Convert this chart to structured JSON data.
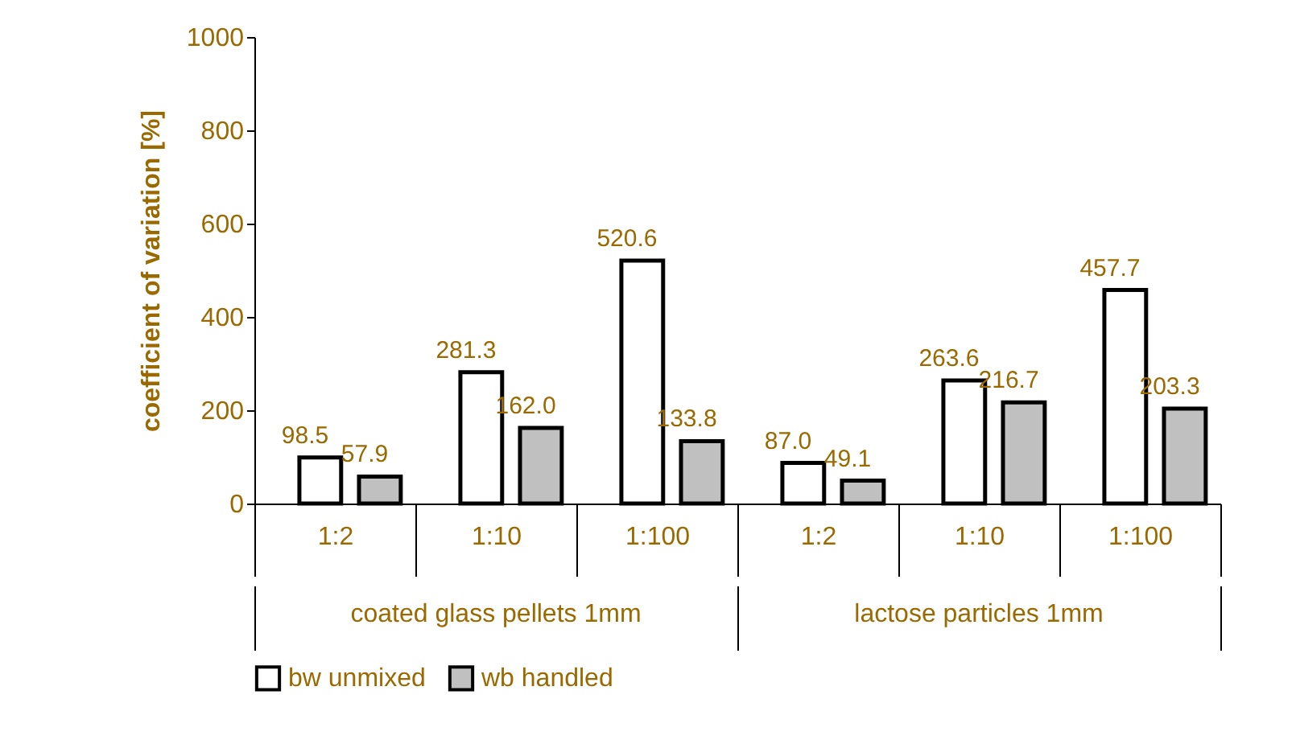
{
  "chart_data": {
    "type": "bar",
    "ylabel": "coefficient of variation [%]",
    "categories": [
      "1:2",
      "1:10",
      "1:100",
      "1:2",
      "1:10",
      "1:100"
    ],
    "annotations": [
      "coated glass pellets 1mm",
      "lactose particles 1mm"
    ],
    "series": [
      {
        "name": "bw unmixed",
        "color": "#ffffff",
        "values": [
          98.5,
          281.3,
          520.6,
          87.0,
          263.6,
          457.7
        ],
        "value_labels": [
          "98.5",
          "281.3",
          "520.6",
          "87.0",
          "263.6",
          "457.7"
        ]
      },
      {
        "name": "wb handled",
        "color": "#c0c0c0",
        "values": [
          57.9,
          162.0,
          133.8,
          49.1,
          216.7,
          203.3
        ],
        "value_labels": [
          "57.9",
          "162.0",
          "133.8",
          "49.1",
          "216.7",
          "203.3"
        ]
      }
    ],
    "ylim": [
      0,
      1000
    ],
    "yticks": [
      0,
      200,
      400,
      600,
      800,
      1000
    ],
    "legend": "bottom"
  }
}
